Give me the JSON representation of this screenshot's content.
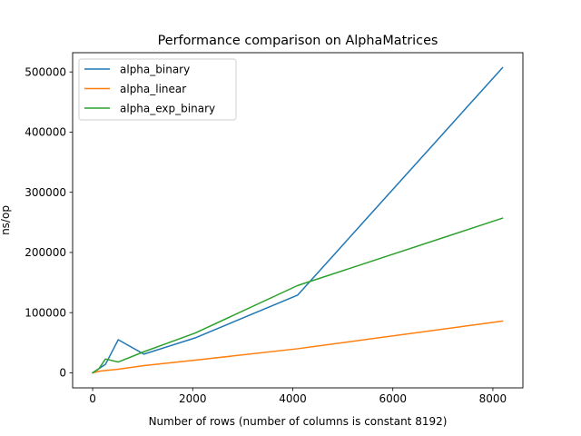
{
  "chart_data": {
    "type": "line",
    "title": "Performance comparison on AlphaMatrices",
    "xlabel": "Number of rows (number of columns is constant 8192)",
    "ylabel": "ns/op",
    "xlim": [
      -400,
      8600
    ],
    "ylim": [
      -25000,
      532000
    ],
    "x_ticks": [
      0,
      2000,
      4000,
      6000,
      8000
    ],
    "x_tick_labels": [
      "0",
      "2000",
      "4000",
      "6000",
      "8000"
    ],
    "y_ticks": [
      0,
      100000,
      200000,
      300000,
      400000,
      500000
    ],
    "y_tick_labels": [
      "0",
      "100000",
      "200000",
      "300000",
      "400000",
      "500000"
    ],
    "grid": false,
    "legend_position": "upper-left",
    "series": [
      {
        "name": "alpha_binary",
        "color": "#1f77b4",
        "x": [
          1,
          2,
          4,
          8,
          16,
          32,
          64,
          128,
          256,
          512,
          1024,
          2048,
          4096,
          8192
        ],
        "y": [
          100,
          150,
          250,
          450,
          900,
          1700,
          3500,
          7000,
          14000,
          55000,
          31000,
          58000,
          129000,
          507000
        ]
      },
      {
        "name": "alpha_linear",
        "color": "#ff7f0e",
        "x": [
          1,
          2,
          4,
          8,
          16,
          32,
          64,
          128,
          256,
          512,
          1024,
          2048,
          4096,
          8192
        ],
        "y": [
          50,
          80,
          120,
          200,
          350,
          600,
          1200,
          2500,
          3800,
          6000,
          12000,
          21000,
          40000,
          86000
        ]
      },
      {
        "name": "alpha_exp_binary",
        "color": "#2ca02c",
        "x": [
          1,
          2,
          4,
          8,
          16,
          32,
          64,
          128,
          256,
          512,
          1024,
          2048,
          4096,
          8192
        ],
        "y": [
          100,
          150,
          250,
          500,
          900,
          1700,
          3400,
          7000,
          23000,
          18000,
          35000,
          66000,
          145000,
          257000
        ]
      }
    ]
  }
}
